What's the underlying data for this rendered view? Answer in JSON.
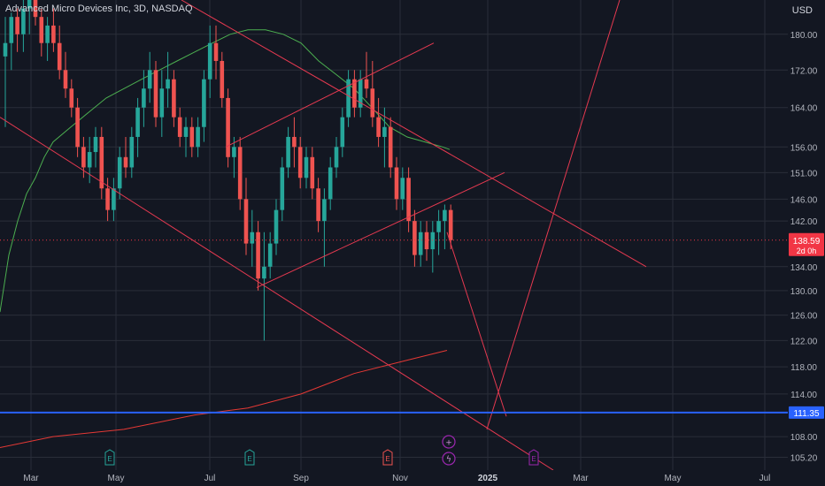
{
  "header": {
    "symbol_title": "Advanced Micro Devices Inc, 3D, NASDAQ",
    "currency": "USD"
  },
  "colors": {
    "background": "#131722",
    "grid": "#2a2e39",
    "text": "#b2b5be",
    "up": "#26a69a",
    "down": "#ef5350",
    "ma50": "#4caf50",
    "ma200": "#e53935",
    "trendline": "#e53950",
    "support": "#2962ff",
    "price_tag": "#f23645",
    "earnings": "#26a69a",
    "earnings_down": "#ef5350",
    "event_purple": "#9c27b0"
  },
  "chart_data": {
    "type": "candlestick",
    "x_ticks": [
      "Mar",
      "May",
      "Jul",
      "Sep",
      "Nov",
      "2025",
      "Mar",
      "May",
      "Jul"
    ],
    "y_ticks": [
      180,
      172,
      164,
      156,
      151,
      146,
      142,
      134,
      130,
      126,
      122,
      118,
      114,
      108,
      105.2
    ],
    "y_scale": "log",
    "ylim": [
      103.5,
      188
    ],
    "candles": [
      {
        "o": 175,
        "h": 184,
        "l": 160,
        "c": 178
      },
      {
        "o": 178,
        "h": 185,
        "l": 172,
        "c": 184
      },
      {
        "o": 184,
        "h": 186,
        "l": 176,
        "c": 180
      },
      {
        "o": 180,
        "h": 190,
        "l": 176,
        "c": 186
      },
      {
        "o": 186,
        "h": 192,
        "l": 180,
        "c": 190
      },
      {
        "o": 190,
        "h": 192,
        "l": 182,
        "c": 184
      },
      {
        "o": 184,
        "h": 186,
        "l": 175,
        "c": 178
      },
      {
        "o": 178,
        "h": 184,
        "l": 174,
        "c": 182
      },
      {
        "o": 182,
        "h": 186,
        "l": 176,
        "c": 178
      },
      {
        "o": 178,
        "h": 182,
        "l": 170,
        "c": 172
      },
      {
        "o": 172,
        "h": 176,
        "l": 166,
        "c": 168
      },
      {
        "o": 168,
        "h": 170,
        "l": 162,
        "c": 164
      },
      {
        "o": 164,
        "h": 166,
        "l": 154,
        "c": 156
      },
      {
        "o": 156,
        "h": 158,
        "l": 150,
        "c": 152
      },
      {
        "o": 152,
        "h": 158,
        "l": 149,
        "c": 155
      },
      {
        "o": 155,
        "h": 160,
        "l": 152,
        "c": 158
      },
      {
        "o": 158,
        "h": 160,
        "l": 146,
        "c": 148
      },
      {
        "o": 148,
        "h": 150,
        "l": 142,
        "c": 144
      },
      {
        "o": 144,
        "h": 150,
        "l": 142,
        "c": 148
      },
      {
        "o": 148,
        "h": 156,
        "l": 146,
        "c": 154
      },
      {
        "o": 154,
        "h": 158,
        "l": 150,
        "c": 152
      },
      {
        "o": 152,
        "h": 160,
        "l": 150,
        "c": 158
      },
      {
        "o": 158,
        "h": 166,
        "l": 154,
        "c": 164
      },
      {
        "o": 164,
        "h": 172,
        "l": 160,
        "c": 168
      },
      {
        "o": 168,
        "h": 176,
        "l": 165,
        "c": 172
      },
      {
        "o": 172,
        "h": 174,
        "l": 160,
        "c": 162
      },
      {
        "o": 162,
        "h": 172,
        "l": 158,
        "c": 168
      },
      {
        "o": 168,
        "h": 176,
        "l": 164,
        "c": 170
      },
      {
        "o": 170,
        "h": 172,
        "l": 160,
        "c": 162
      },
      {
        "o": 162,
        "h": 164,
        "l": 156,
        "c": 158
      },
      {
        "o": 158,
        "h": 162,
        "l": 154,
        "c": 160
      },
      {
        "o": 160,
        "h": 162,
        "l": 154,
        "c": 156
      },
      {
        "o": 156,
        "h": 162,
        "l": 154,
        "c": 160
      },
      {
        "o": 160,
        "h": 172,
        "l": 157,
        "c": 170
      },
      {
        "o": 170,
        "h": 182,
        "l": 166,
        "c": 178
      },
      {
        "o": 178,
        "h": 182,
        "l": 170,
        "c": 174
      },
      {
        "o": 174,
        "h": 176,
        "l": 164,
        "c": 166
      },
      {
        "o": 166,
        "h": 168,
        "l": 152,
        "c": 154
      },
      {
        "o": 154,
        "h": 158,
        "l": 150,
        "c": 156
      },
      {
        "o": 156,
        "h": 158,
        "l": 144,
        "c": 146
      },
      {
        "o": 146,
        "h": 150,
        "l": 136,
        "c": 138
      },
      {
        "o": 138,
        "h": 144,
        "l": 134,
        "c": 140
      },
      {
        "o": 140,
        "h": 142,
        "l": 130,
        "c": 132
      },
      {
        "o": 132,
        "h": 140,
        "l": 122,
        "c": 134
      },
      {
        "o": 134,
        "h": 140,
        "l": 132,
        "c": 138
      },
      {
        "o": 138,
        "h": 146,
        "l": 136,
        "c": 144
      },
      {
        "o": 144,
        "h": 154,
        "l": 142,
        "c": 152
      },
      {
        "o": 152,
        "h": 160,
        "l": 150,
        "c": 158
      },
      {
        "o": 158,
        "h": 162,
        "l": 152,
        "c": 156
      },
      {
        "o": 156,
        "h": 158,
        "l": 148,
        "c": 150
      },
      {
        "o": 150,
        "h": 156,
        "l": 148,
        "c": 154
      },
      {
        "o": 154,
        "h": 156,
        "l": 146,
        "c": 148
      },
      {
        "o": 148,
        "h": 150,
        "l": 140,
        "c": 142
      },
      {
        "o": 142,
        "h": 148,
        "l": 134,
        "c": 146
      },
      {
        "o": 146,
        "h": 154,
        "l": 144,
        "c": 152
      },
      {
        "o": 152,
        "h": 158,
        "l": 150,
        "c": 156
      },
      {
        "o": 156,
        "h": 164,
        "l": 154,
        "c": 162
      },
      {
        "o": 162,
        "h": 172,
        "l": 160,
        "c": 170
      },
      {
        "o": 170,
        "h": 172,
        "l": 162,
        "c": 164
      },
      {
        "o": 164,
        "h": 172,
        "l": 162,
        "c": 170
      },
      {
        "o": 170,
        "h": 176,
        "l": 166,
        "c": 168
      },
      {
        "o": 168,
        "h": 174,
        "l": 160,
        "c": 162
      },
      {
        "o": 162,
        "h": 166,
        "l": 156,
        "c": 158
      },
      {
        "o": 158,
        "h": 164,
        "l": 152,
        "c": 160
      },
      {
        "o": 160,
        "h": 162,
        "l": 150,
        "c": 152
      },
      {
        "o": 152,
        "h": 154,
        "l": 144,
        "c": 146
      },
      {
        "o": 146,
        "h": 152,
        "l": 144,
        "c": 150
      },
      {
        "o": 150,
        "h": 152,
        "l": 140,
        "c": 142
      },
      {
        "o": 142,
        "h": 144,
        "l": 134,
        "c": 136
      },
      {
        "o": 136,
        "h": 142,
        "l": 134,
        "c": 140
      },
      {
        "o": 140,
        "h": 142,
        "l": 135,
        "c": 137
      },
      {
        "o": 137,
        "h": 142,
        "l": 133,
        "c": 140
      },
      {
        "o": 140,
        "h": 144,
        "l": 136,
        "c": 142
      },
      {
        "o": 142,
        "h": 145,
        "l": 137,
        "c": 144
      },
      {
        "o": 144,
        "h": 145,
        "l": 137,
        "c": 138.59
      }
    ],
    "ma50": [
      [
        0,
        126.5
      ],
      [
        10,
        136
      ],
      [
        20,
        142
      ],
      [
        30,
        147
      ],
      [
        40,
        150
      ],
      [
        50,
        154
      ],
      [
        60,
        157
      ],
      [
        80,
        160
      ],
      [
        100,
        163
      ],
      [
        120,
        166
      ],
      [
        140,
        168
      ],
      [
        160,
        170
      ],
      [
        180,
        172
      ],
      [
        200,
        174
      ],
      [
        220,
        176
      ],
      [
        240,
        178
      ],
      [
        260,
        180
      ],
      [
        280,
        181
      ],
      [
        300,
        181
      ],
      [
        320,
        180
      ],
      [
        340,
        178
      ],
      [
        360,
        174
      ],
      [
        380,
        171
      ],
      [
        400,
        168
      ],
      [
        420,
        164
      ],
      [
        440,
        160
      ],
      [
        460,
        158
      ],
      [
        480,
        157
      ],
      [
        500,
        156
      ],
      [
        508,
        155.5
      ]
    ],
    "ma200": [
      [
        0,
        106.5
      ],
      [
        60,
        108
      ],
      [
        140,
        109
      ],
      [
        220,
        111
      ],
      [
        280,
        112
      ],
      [
        340,
        114
      ],
      [
        400,
        117
      ],
      [
        460,
        119
      ],
      [
        505,
        120.5
      ]
    ],
    "trendlines": [
      {
        "x1": 0,
        "p1": 162,
        "x2": 625,
        "p2": 103.5
      },
      {
        "x1": 205,
        "p1": 188,
        "x2": 730,
        "p2": 134
      },
      {
        "x1": 255,
        "p1": 156,
        "x2": 490,
        "p2": 178
      },
      {
        "x1": 290,
        "p1": 130.5,
        "x2": 570,
        "p2": 151
      },
      {
        "x1": 505,
        "p1": 140,
        "x2": 572,
        "p2": 110.8
      },
      {
        "x1": 550,
        "p1": 109,
        "x2": 700,
        "p2": 188
      }
    ],
    "support_level": 111.35,
    "current_price": "138.59",
    "countdown": "2d 0h",
    "support_label": "111.35",
    "earnings_markers": [
      {
        "x": 124,
        "label": "E",
        "kind": "up"
      },
      {
        "x": 282,
        "label": "E",
        "kind": "up"
      },
      {
        "x": 438,
        "label": "E",
        "kind": "down"
      },
      {
        "x": 603,
        "label": "E",
        "kind": "purple"
      }
    ],
    "event_markers": [
      {
        "x": 507,
        "y": 500,
        "symbol": "+"
      },
      {
        "x": 507,
        "y": 519,
        "symbol": "ϟ"
      }
    ]
  }
}
